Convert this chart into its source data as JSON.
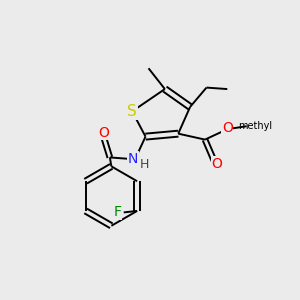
{
  "bg_color": "#ebebeb",
  "atom_colors": {
    "S": "#cccc00",
    "N": "#2222ff",
    "O": "#ff0000",
    "F": "#008800",
    "C": "#000000",
    "H": "#444444"
  },
  "bond_color": "#000000",
  "figsize": [
    3.0,
    3.0
  ],
  "dpi": 100
}
